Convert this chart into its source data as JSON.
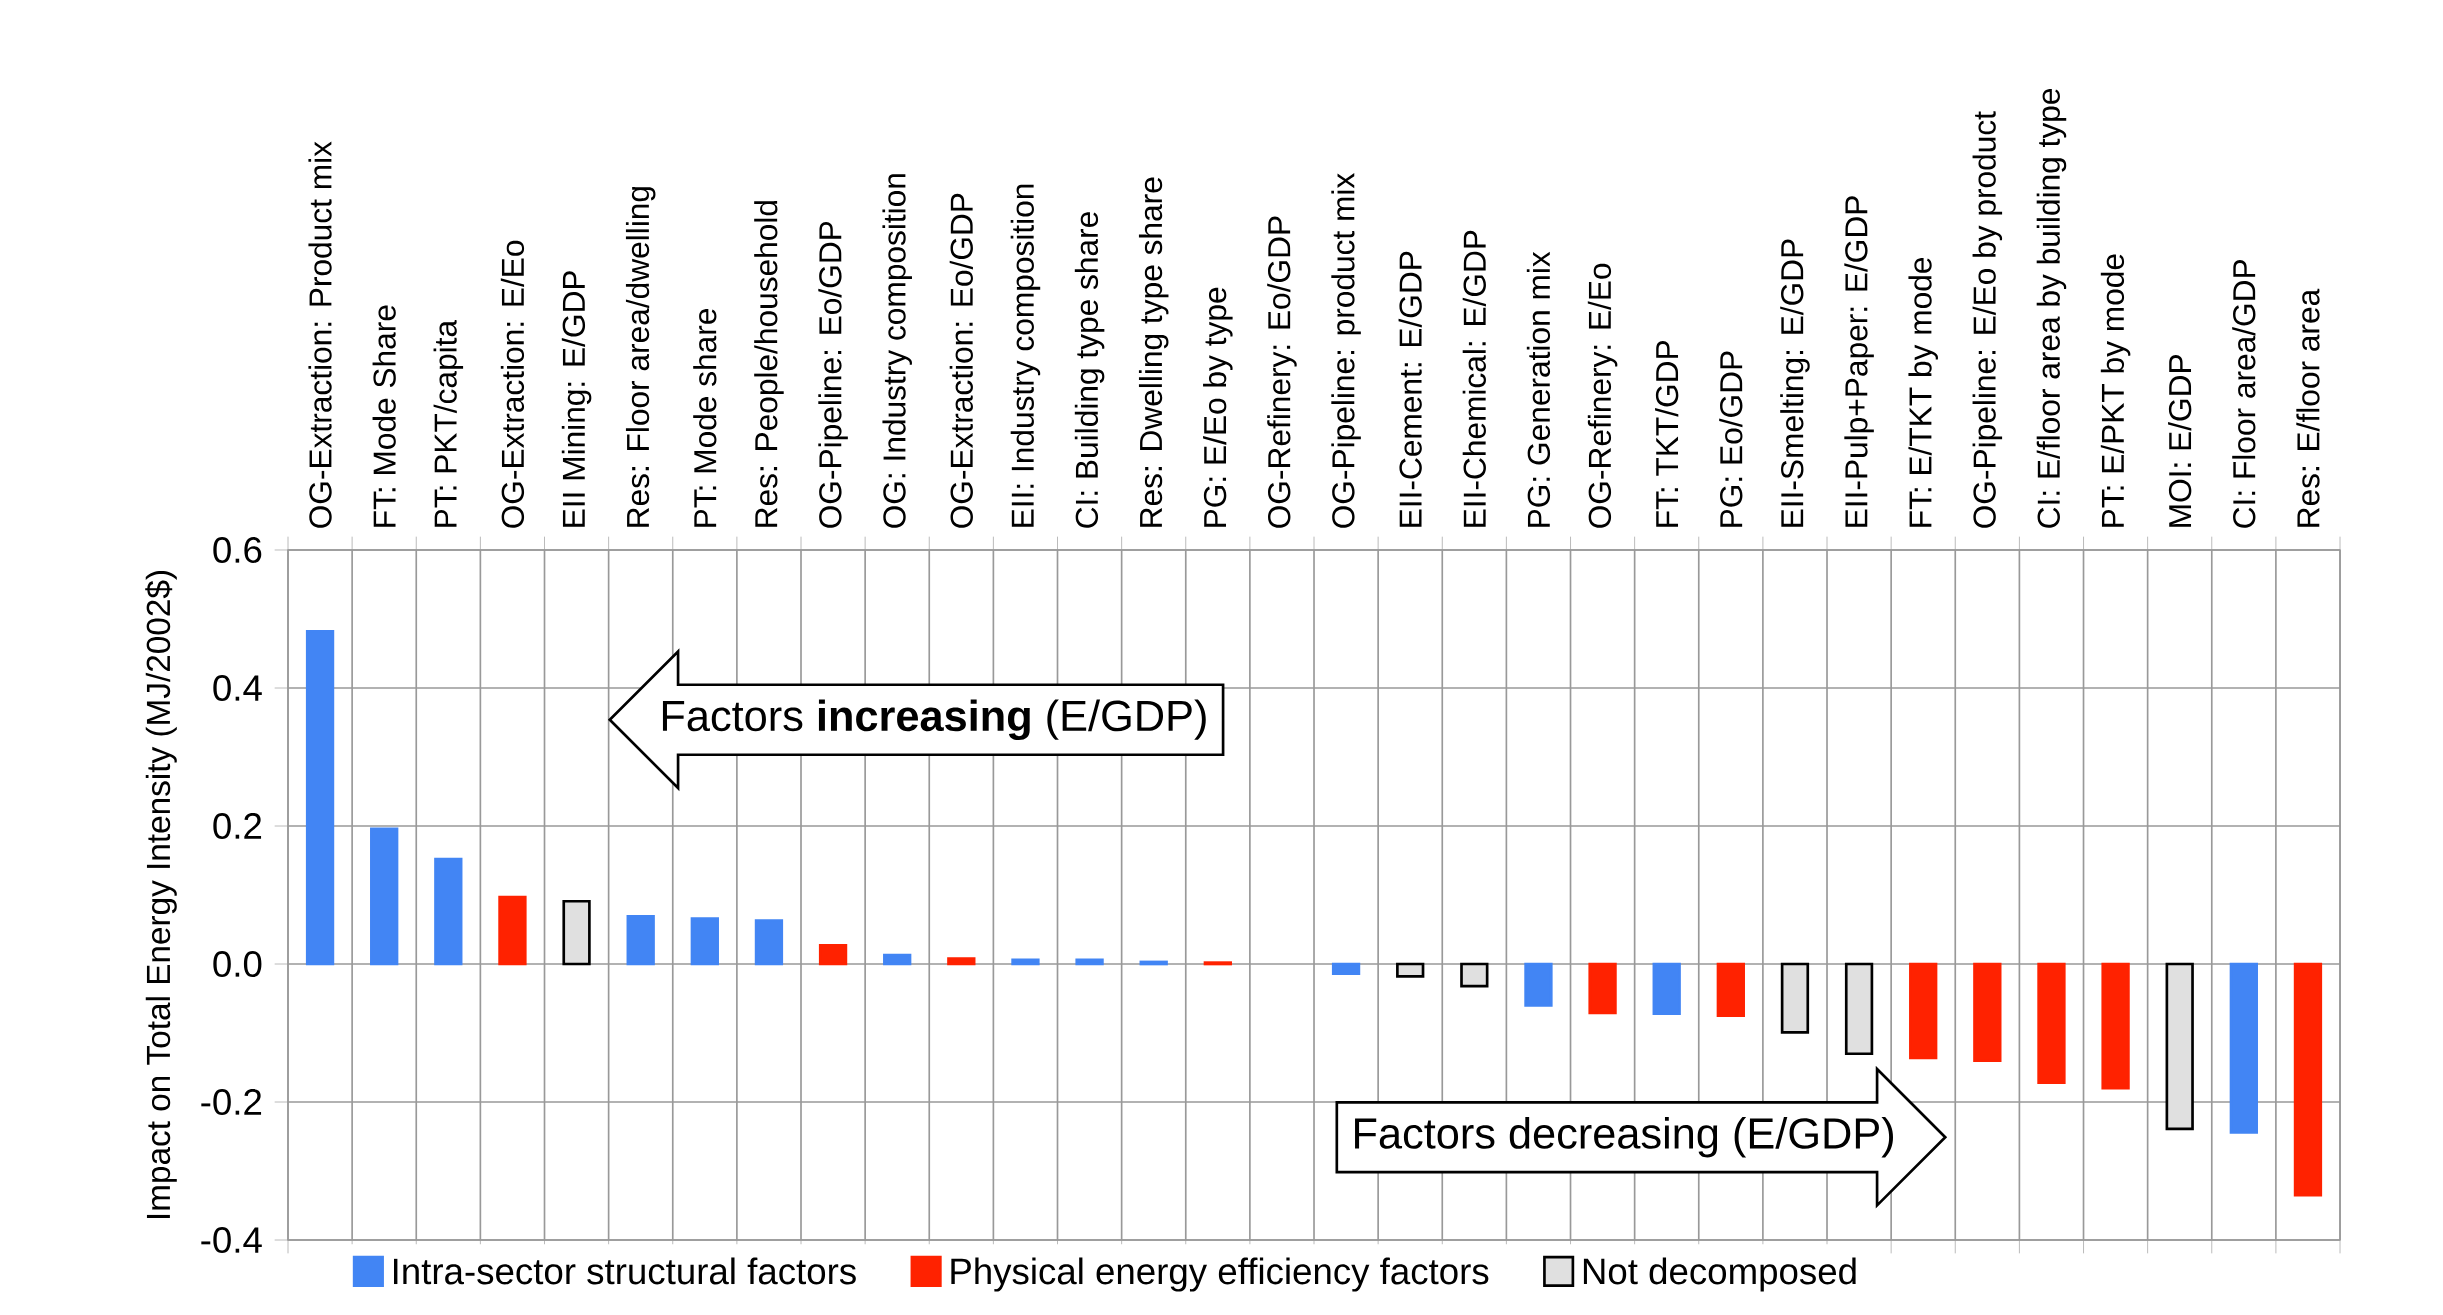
{
  "chart_data": {
    "type": "bar",
    "ylabel": "Impact on Total Energy Intensity (MJ/2002$)",
    "categories": [
      "OG-Extraction: Product mix",
      "FT: Mode Share",
      "PT: PKT/capita",
      "OG-Extraction: E/Eo",
      "EII Mining: E/GDP",
      "Res: Floor area/dwelling",
      "PT: Mode share",
      "Res: People/household",
      "OG-Pipeline: Eo/GDP",
      "OG: Industry composition",
      "OG-Extraction: Eo/GDP",
      "EII: Industry composition",
      "CI: Building type share",
      "Res: Dwelling type share",
      "PG: E/Eo by type",
      "OG-Refinery: Eo/GDP",
      "OG-Pipeline: product mix",
      "EII-Cement: E/GDP",
      "EII-Chemical: E/GDP",
      "PG: Generation mix",
      "OG-Refinery: E/Eo",
      "FT: TKT/GDP",
      "PG: Eo/GDP",
      "EII-Smelting: E/GDP",
      "EII-Pulp+Paper: E/GDP",
      "FT: E/TKT by mode",
      "OG-Pipeline: E/Eo by product",
      "CI: E/floor area by building type",
      "PT: E/PKT by mode",
      "MOI: E/GDP",
      "CI: Floor area/GDP",
      "Res: E/floor area"
    ],
    "series": [
      {
        "name": "Intra-sector structural factors",
        "color": "#4285f4",
        "values": [
          0.482,
          0.196,
          0.152,
          null,
          null,
          0.069,
          0.066,
          0.063,
          null,
          0.013,
          null,
          0.006,
          0.006,
          0.003,
          null,
          null,
          -0.014,
          null,
          null,
          -0.06,
          null,
          -0.072,
          null,
          null,
          null,
          null,
          null,
          null,
          null,
          null,
          -0.244,
          null
        ]
      },
      {
        "name": "Physical energy efficiency factors",
        "color": "#ff2200",
        "values": [
          null,
          null,
          null,
          0.097,
          null,
          null,
          null,
          null,
          0.027,
          null,
          0.008,
          null,
          null,
          null,
          0.002,
          null,
          null,
          null,
          null,
          null,
          -0.071,
          null,
          -0.075,
          null,
          null,
          -0.136,
          -0.14,
          -0.172,
          -0.18,
          null,
          null,
          -0.335
        ]
      },
      {
        "name": "Not decomposed",
        "color": "#e0e0e0",
        "values": [
          null,
          null,
          null,
          null,
          0.091,
          null,
          null,
          null,
          null,
          null,
          null,
          null,
          null,
          null,
          null,
          null,
          null,
          -0.018,
          -0.032,
          null,
          null,
          null,
          null,
          -0.099,
          -0.13,
          null,
          null,
          null,
          null,
          -0.239,
          null,
          null
        ]
      }
    ],
    "ylim": [
      -0.4,
      0.6
    ],
    "yticks": [
      -0.4,
      -0.2,
      {
        "value": 0,
        "label": "0.0"
      },
      0.2,
      0.4,
      0.6
    ],
    "grid": true,
    "legend": "bottom",
    "annotations": [
      "Factors **increasing** (E/GDP)",
      "Factors decreasing (E/GDP)"
    ]
  }
}
